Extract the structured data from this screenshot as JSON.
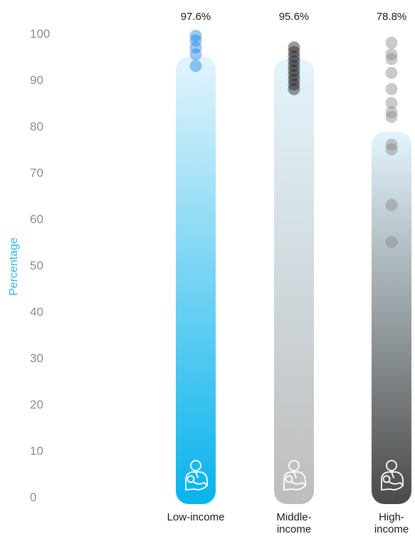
{
  "chart_data": {
    "type": "bar",
    "title": "",
    "xlabel": "",
    "ylabel": "Percentage",
    "ylim": [
      0,
      100
    ],
    "yticks": [
      0,
      10,
      20,
      30,
      40,
      50,
      60,
      70,
      80,
      90,
      100
    ],
    "grid": false,
    "icon": "mother-breastfeeding-icon",
    "categories": [
      {
        "key": "low",
        "label_lines": [
          "Low-income"
        ],
        "value": 97.6,
        "value_label": "97.6%",
        "bar_top": 95,
        "dots": [
          99.5,
          98.5,
          97,
          95.5,
          93
        ],
        "color_top": "#e3f4fc",
        "color_bottom": "#08b3ec",
        "dot_color": "#1e88e5"
      },
      {
        "key": "middle",
        "label_lines": [
          "Middle-",
          "income"
        ],
        "value": 95.6,
        "value_label": "95.6%",
        "bar_top": 94.5,
        "dots": [
          97,
          96,
          95,
          94,
          93,
          92,
          91,
          90,
          89,
          88
        ],
        "color_top": "#e3f4fc",
        "color_bottom": "#bdbdbd",
        "dot_color": "#222222"
      },
      {
        "key": "high",
        "label_lines": [
          "High-",
          "income"
        ],
        "value": 78.8,
        "value_label": "78.8%",
        "bar_top": 78.8,
        "dots": [
          98,
          95.5,
          94.5,
          91.5,
          88,
          85,
          83,
          82,
          76,
          75,
          63,
          55
        ],
        "color_top": "#e3f4fc",
        "color_bottom": "#4a4a4a",
        "dot_color": "#8a8a8a"
      }
    ]
  }
}
